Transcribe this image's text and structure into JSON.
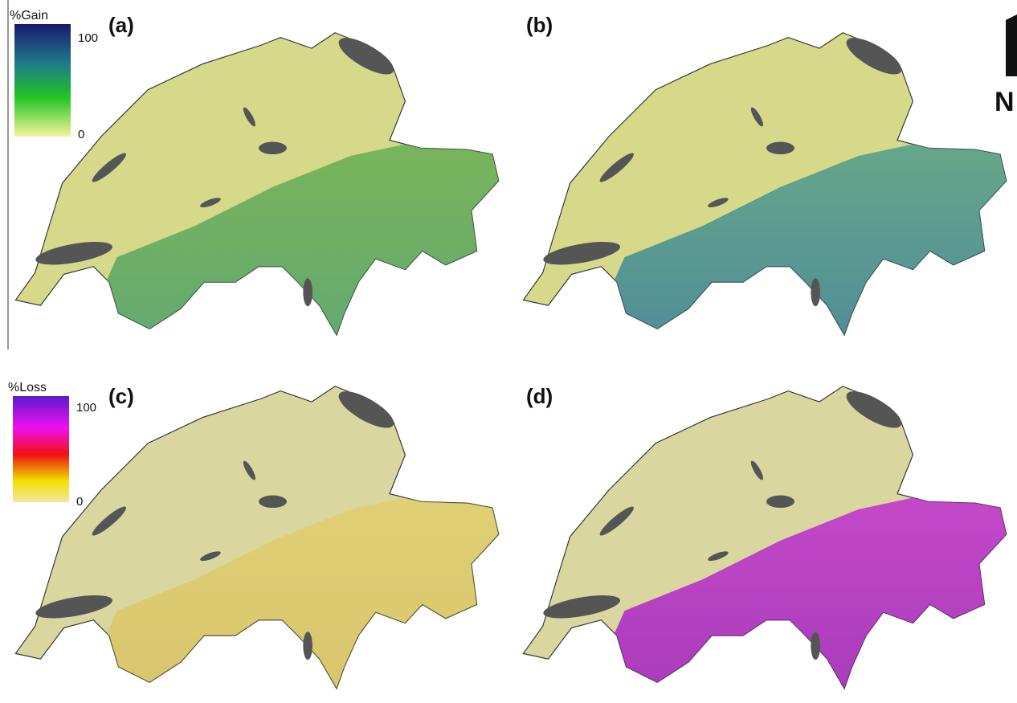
{
  "panels": [
    {
      "label": "(a)"
    },
    {
      "label": "(b)"
    },
    {
      "label": "(c)"
    },
    {
      "label": "(d)"
    }
  ],
  "legends": [
    {
      "title": "%Gain",
      "max": 100,
      "min": 0
    },
    {
      "title": "%Loss",
      "max": 100,
      "min": 0
    }
  ],
  "north_arrow": "N"
}
